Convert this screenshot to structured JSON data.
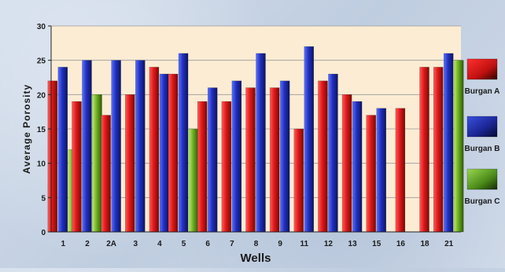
{
  "chart_data": {
    "type": "bar",
    "title": "",
    "xlabel": "Wells",
    "ylabel": "Average Porosity",
    "ylim": [
      0,
      30
    ],
    "yticks": [
      0,
      5,
      10,
      15,
      20,
      25,
      30
    ],
    "grid": true,
    "legend_placement": "right",
    "categories": [
      "1",
      "2",
      "2A",
      "3",
      "4",
      "5",
      "6",
      "7",
      "8",
      "9",
      "11",
      "12",
      "13",
      "15",
      "16",
      "18",
      "21"
    ],
    "series": [
      {
        "name": "Burgan A",
        "color": "#e02020",
        "values": [
          22,
          19,
          17,
          20,
          24,
          23,
          19,
          19,
          21,
          21,
          15,
          22,
          20,
          17,
          18,
          24,
          24
        ]
      },
      {
        "name": "Burgan B",
        "color": "#2030b0",
        "values": [
          24,
          25,
          25,
          25,
          23,
          26,
          21,
          22,
          26,
          22,
          27,
          23,
          19,
          18,
          null,
          null,
          26
        ]
      },
      {
        "name": "Burgan C",
        "color": "#7cbf2a",
        "values": [
          12,
          20,
          null,
          null,
          null,
          15,
          null,
          null,
          null,
          null,
          null,
          null,
          null,
          null,
          null,
          null,
          25
        ]
      }
    ]
  }
}
